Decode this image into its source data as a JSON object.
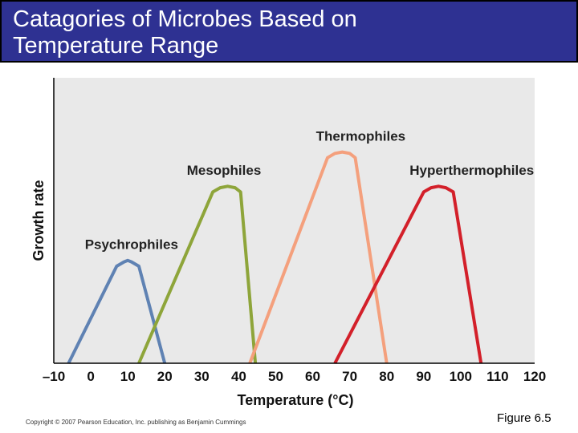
{
  "slide": {
    "title_line1": "Catagories of Microbes Based on",
    "title_line2": "Temperature Range",
    "copyright": "Copyright © 2007 Pearson Education, Inc. publishing as Benjamin Cummings",
    "figure_label": "Figure 6.5"
  },
  "chart_data": {
    "type": "line",
    "title": "",
    "xlabel": "Temperature (°C)",
    "ylabel": "Growth rate",
    "xlim": [
      -10,
      120
    ],
    "ylim": [
      0,
      1
    ],
    "x_ticks": [
      -10,
      0,
      10,
      20,
      30,
      40,
      50,
      60,
      70,
      80,
      90,
      100,
      110,
      120
    ],
    "x_tick_labels": [
      "–10",
      "0",
      "10",
      "20",
      "30",
      "40",
      "50",
      "60",
      "70",
      "80",
      "90",
      "100",
      "110",
      "120"
    ],
    "grid": false,
    "series": [
      {
        "name": "Psychrophiles",
        "color": "#5f82b3",
        "x": [
          -6,
          7,
          9,
          10,
          11,
          13,
          20
        ],
        "y": [
          0,
          0.34,
          0.355,
          0.36,
          0.355,
          0.34,
          0
        ]
      },
      {
        "name": "Mesophiles",
        "color": "#8ea53a",
        "x": [
          13,
          33,
          35,
          37,
          39,
          40.5,
          44.5
        ],
        "y": [
          0,
          0.6,
          0.615,
          0.62,
          0.615,
          0.6,
          0
        ]
      },
      {
        "name": "Thermophiles",
        "color": "#f4a07d",
        "x": [
          43,
          64,
          66,
          68,
          70,
          71.5,
          80
        ],
        "y": [
          0,
          0.72,
          0.735,
          0.74,
          0.735,
          0.72,
          0
        ]
      },
      {
        "name": "Hyperthermophiles",
        "color": "#d3202a",
        "x": [
          66,
          90,
          92,
          94,
          96,
          98,
          105.5
        ],
        "y": [
          0,
          0.6,
          0.615,
          0.62,
          0.615,
          0.6,
          0
        ]
      }
    ],
    "series_label_x": [
      11,
      36,
      73,
      103
    ],
    "series_label_y": [
      0.4,
      0.66,
      0.78,
      0.66
    ]
  }
}
